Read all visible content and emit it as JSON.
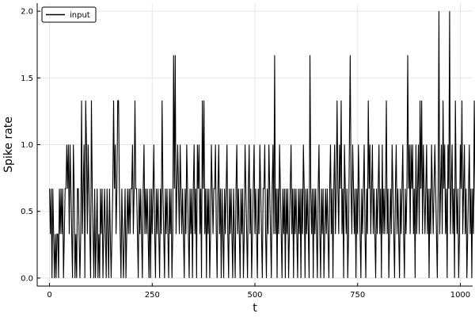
{
  "chart_data": {
    "type": "line",
    "title": "",
    "xlabel": "t",
    "ylabel": "Spike rate",
    "xlim": [
      -30,
      1030
    ],
    "ylim": [
      -0.06,
      2.06
    ],
    "x_ticks": [
      0,
      250,
      500,
      750,
      1000
    ],
    "x_tick_labels": [
      "0",
      "250",
      "500",
      "750",
      "1000"
    ],
    "y_ticks": [
      0.0,
      0.5,
      1.0,
      1.5,
      2.0
    ],
    "y_tick_labels": [
      "0.0",
      "0.5",
      "1.0",
      "1.5",
      "2.0"
    ],
    "grid": true,
    "legend_position": "top-left",
    "series": [
      {
        "name": "input",
        "color": "#000000",
        "x_start": 0,
        "x_step": 2,
        "values": [
          0.67,
          0.33,
          0.67,
          0,
          0.67,
          0.33,
          0,
          0.33,
          0,
          0.33,
          0.33,
          0,
          0.67,
          0.33,
          0.67,
          0.33,
          0.67,
          0,
          0.33,
          0.67,
          0.67,
          1,
          0.67,
          1,
          0.33,
          1,
          0.67,
          0.33,
          0,
          1,
          0.67,
          0,
          0.33,
          0,
          0.67,
          0.67,
          0.33,
          0,
          0.33,
          1.33,
          0.33,
          0.67,
          1,
          0,
          1.33,
          1,
          0.33,
          1,
          0.67,
          0.33,
          0,
          1.33,
          0.67,
          0.33,
          0,
          0.67,
          0,
          0.33,
          0.67,
          0,
          0.33,
          0,
          0.67,
          0.33,
          0.67,
          0,
          0.33,
          0.67,
          0.33,
          0,
          0.67,
          0.33,
          0,
          0.67,
          0.33,
          0,
          0.33,
          0.67,
          1.33,
          0.67,
          1,
          0.33,
          0.67,
          1.33,
          1.33,
          0.67,
          0.33,
          0,
          0.67,
          0.33,
          0,
          0.33,
          0.67,
          0,
          0.33,
          0.67,
          0.33,
          0.67,
          0.33,
          0.67,
          0.67,
          1,
          0.33,
          0.67,
          1.33,
          0.67,
          0.67,
          0.33,
          0,
          0.67,
          0.33,
          0.67,
          0.33,
          0,
          0.67,
          1,
          0.33,
          0.67,
          0.33,
          0.67,
          0.33,
          0,
          0.67,
          0,
          0.67,
          0.33,
          0.67,
          1,
          0.33,
          0,
          0.67,
          0.33,
          0.67,
          0.33,
          0,
          0.67,
          0.33,
          1.33,
          0.67,
          0.33,
          0,
          0.67,
          0.33,
          0.67,
          0.33,
          0,
          0.67,
          0.33,
          0.67,
          0,
          0.33,
          1.67,
          0.67,
          1.67,
          0.33,
          0.67,
          1,
          0.67,
          0.33,
          1,
          0.67,
          0.33,
          0.67,
          0.33,
          0,
          0.67,
          0.33,
          1,
          0.67,
          0.33,
          0,
          0.67,
          0.33,
          0.67,
          0,
          0.67,
          1,
          0.33,
          0.67,
          0,
          1,
          0.67,
          1,
          0.33,
          0.67,
          0,
          1.33,
          0.67,
          1.33,
          0.33,
          0.67,
          0,
          0.67,
          0.33,
          0.67,
          0,
          0.33,
          1,
          0.67,
          0.33,
          0.67,
          0.67,
          1,
          0.33,
          0,
          0.67,
          1,
          0.33,
          0.67,
          0,
          0.67,
          0.33,
          0,
          0.67,
          0.33,
          0.67,
          1,
          0.33,
          0,
          0.67,
          0.33,
          0.67,
          0.33,
          0,
          0.67,
          0.33,
          0,
          0.67,
          1,
          0.33,
          0.67,
          0.33,
          0,
          0.67,
          0.33,
          0.67,
          0,
          0.33,
          1,
          0.67,
          0.33,
          0,
          0.67,
          1,
          0.33,
          0.67,
          0,
          0.33,
          0.67,
          1,
          0.33,
          0.67,
          0.33,
          0,
          0.67,
          0.33,
          1,
          0.67,
          0.33,
          0,
          0.67,
          0.67,
          1,
          0.33,
          0,
          0.67,
          0.33,
          1,
          0.67,
          0.33,
          0,
          0.67,
          1,
          0.33,
          1.67,
          0.33,
          0.67,
          0,
          0.67,
          0.33,
          1,
          0.67,
          0.33,
          0,
          0.67,
          0.33,
          0.67,
          0,
          0.67,
          0.33,
          0.67,
          0,
          0.33,
          0.67,
          1,
          0.33,
          0.67,
          0,
          0.67,
          0.33,
          0.67,
          0.33,
          0,
          0.67,
          0.33,
          0.67,
          0,
          0.67,
          0.33,
          1,
          0.67,
          0,
          0.67,
          0.33,
          0.67,
          0.33,
          0,
          1.67,
          0.67,
          0.33,
          0.67,
          0,
          0.67,
          0.33,
          0.67,
          0.33,
          0,
          0.67,
          1,
          0.33,
          0,
          0.67,
          0.33,
          0.67,
          0,
          0.33,
          0.67,
          0.33,
          0.67,
          0.33,
          0,
          0.67,
          1,
          0.33,
          0.67,
          0,
          0.67,
          1,
          0.33,
          0.67,
          1.33,
          0.67,
          0.33,
          1,
          0.67,
          1.33,
          0.33,
          0.67,
          0,
          1,
          0.67,
          0.33,
          0.67,
          0,
          0.33,
          1,
          1.67,
          0.67,
          0.33,
          1,
          0.67,
          0.33,
          0.67,
          0,
          0.67,
          0.33,
          1,
          0.67,
          0.33,
          0,
          0.67,
          0.33,
          0.67,
          1,
          0.33,
          0,
          0.67,
          0.33,
          1.33,
          0.67,
          1,
          0.33,
          0.67,
          1,
          0.33,
          0.67,
          0.33,
          0,
          0.67,
          0.33,
          0.67,
          1,
          0.33,
          0.67,
          0,
          1,
          0.33,
          0.67,
          0.33,
          0.67,
          1.33,
          0.33,
          0.67,
          0,
          0.33,
          0.67,
          0.33,
          1,
          0.67,
          0.33,
          0,
          0.67,
          1,
          0.33,
          0.67,
          0.33,
          0,
          0.67,
          0.33,
          0.67,
          1,
          0.33,
          0,
          0.67,
          0.33,
          0.67,
          1.67,
          0.67,
          1,
          0.33,
          1,
          0.67,
          1,
          0.33,
          0.67,
          0,
          1,
          0.33,
          0.67,
          1,
          0.33,
          1.33,
          0.67,
          1.33,
          0.33,
          1,
          0.67,
          0.33,
          0.67,
          1,
          0.33,
          0.67,
          0,
          0.67,
          0.33,
          1,
          0.67,
          0.33,
          0.67,
          1,
          0.67,
          0.33,
          0,
          0.67,
          2,
          0.33,
          0.67,
          1,
          0.33,
          1.33,
          0.67,
          1,
          0.33,
          0.67,
          0,
          1,
          0.67,
          2,
          0.33,
          0.67,
          1,
          0.33,
          0.67,
          0,
          1.33,
          0.67,
          0.33,
          0.67,
          0,
          0.33,
          1,
          0.67,
          1.33,
          0.33,
          0.67,
          1,
          0.33,
          0.67,
          0,
          0.33,
          0.67,
          1,
          0.33,
          0.67,
          0,
          0.67,
          0.33,
          1.33,
          0.67,
          0.33
        ]
      }
    ]
  }
}
